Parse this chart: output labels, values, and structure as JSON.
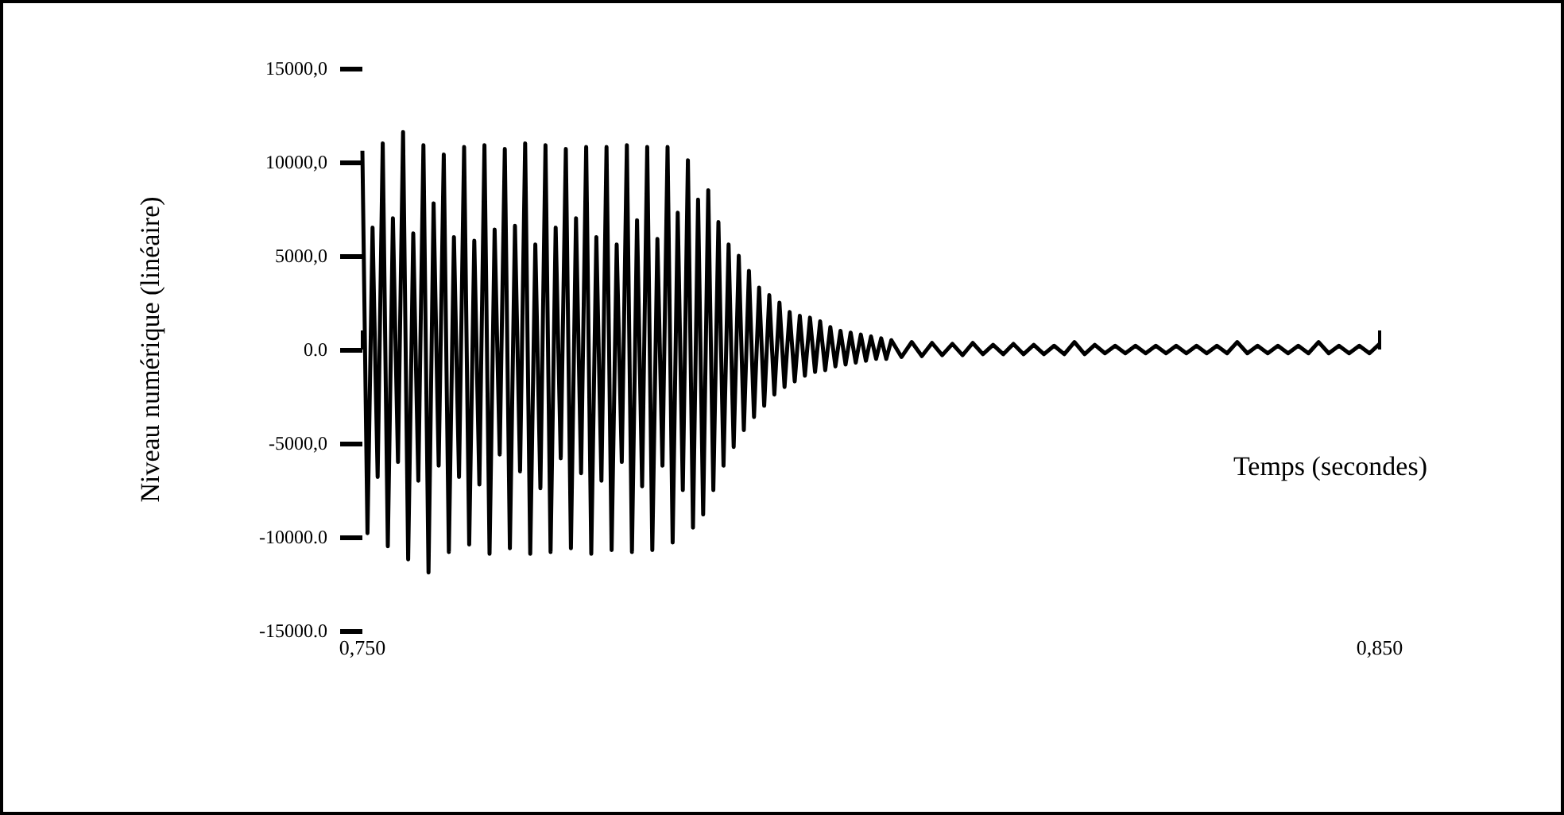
{
  "chart_data": {
    "type": "line",
    "xlabel": "Temps (secondes)",
    "ylabel": "Niveau numérique (linéaire)",
    "xlim": [
      0.75,
      0.85
    ],
    "xticks": [
      {
        "value": 0.75,
        "label": "0,750"
      },
      {
        "value": 0.85,
        "label": "0,850"
      }
    ],
    "ylim": [
      -15000,
      15000
    ],
    "yticks": [
      {
        "value": -15000,
        "label": "-15000.0"
      },
      {
        "value": -10000,
        "label": "-10000.0"
      },
      {
        "value": -5000,
        "label": "-5000,0"
      },
      {
        "value": 0,
        "label": "0.0"
      },
      {
        "value": 5000,
        "label": "5000,0"
      },
      {
        "value": 10000,
        "label": "10000,0"
      },
      {
        "value": 15000,
        "label": "15000,0"
      }
    ],
    "grid": false,
    "series": [
      {
        "color": "#000000",
        "x": [
          0.75,
          0.7505,
          0.751,
          0.7515,
          0.752,
          0.7525,
          0.753,
          0.7535,
          0.754,
          0.7545,
          0.755,
          0.7555,
          0.756,
          0.7565,
          0.757,
          0.7575,
          0.758,
          0.7585,
          0.759,
          0.7595,
          0.76,
          0.7605,
          0.761,
          0.7615,
          0.762,
          0.7625,
          0.763,
          0.7635,
          0.764,
          0.7645,
          0.765,
          0.7655,
          0.766,
          0.7665,
          0.767,
          0.7675,
          0.768,
          0.7685,
          0.769,
          0.7695,
          0.77,
          0.7705,
          0.771,
          0.7715,
          0.772,
          0.7725,
          0.773,
          0.7735,
          0.774,
          0.7745,
          0.775,
          0.7755,
          0.776,
          0.7765,
          0.777,
          0.7775,
          0.778,
          0.7785,
          0.779,
          0.7795,
          0.78,
          0.7805,
          0.781,
          0.7815,
          0.782,
          0.7825,
          0.783,
          0.7835,
          0.784,
          0.7845,
          0.785,
          0.7855,
          0.786,
          0.7865,
          0.787,
          0.7875,
          0.788,
          0.7885,
          0.789,
          0.7895,
          0.79,
          0.7905,
          0.791,
          0.7915,
          0.792,
          0.7925,
          0.793,
          0.7935,
          0.794,
          0.7945,
          0.795,
          0.7955,
          0.796,
          0.7965,
          0.797,
          0.7975,
          0.798,
          0.7985,
          0.799,
          0.7995,
          0.8,
          0.8005,
          0.801,
          0.8015,
          0.802,
          0.803,
          0.804,
          0.805,
          0.806,
          0.807,
          0.808,
          0.809,
          0.81,
          0.811,
          0.812,
          0.813,
          0.814,
          0.815,
          0.816,
          0.817,
          0.818,
          0.819,
          0.82,
          0.821,
          0.822,
          0.823,
          0.824,
          0.825,
          0.826,
          0.827,
          0.828,
          0.829,
          0.83,
          0.831,
          0.832,
          0.833,
          0.834,
          0.835,
          0.836,
          0.837,
          0.838,
          0.839,
          0.84,
          0.841,
          0.842,
          0.843,
          0.844,
          0.845,
          0.846,
          0.847,
          0.848,
          0.849,
          0.85
        ],
        "values": [
          10600,
          -9800,
          6500,
          -6800,
          11000,
          -10500,
          7000,
          -6000,
          11600,
          -11200,
          6200,
          -7000,
          10900,
          -11900,
          7800,
          -6200,
          10400,
          -10800,
          6000,
          -6800,
          10800,
          -10400,
          5800,
          -7200,
          10900,
          -10900,
          6400,
          -5600,
          10700,
          -10600,
          6600,
          -6500,
          11000,
          -10900,
          5600,
          -7400,
          10900,
          -10800,
          6500,
          -5800,
          10700,
          -10600,
          7000,
          -6600,
          10800,
          -10900,
          6000,
          -7000,
          10800,
          -10700,
          5600,
          -6000,
          10900,
          -10800,
          6900,
          -7300,
          10800,
          -10700,
          5900,
          -6200,
          10800,
          -10300,
          7300,
          -7500,
          10100,
          -9500,
          8000,
          -8800,
          8500,
          -7500,
          6800,
          -6200,
          5600,
          -5200,
          5000,
          -4300,
          4200,
          -3600,
          3300,
          -3000,
          2900,
          -2400,
          2500,
          -2000,
          2000,
          -1700,
          1800,
          -1400,
          1700,
          -1200,
          1500,
          -1100,
          1200,
          -900,
          1000,
          -800,
          900,
          -700,
          800,
          -600,
          700,
          -500,
          600,
          -500,
          500,
          -400,
          400,
          -350,
          350,
          -300,
          300,
          -300,
          350,
          -250,
          250,
          -250,
          300,
          -250,
          250,
          -250,
          200,
          -250,
          400,
          -250,
          250,
          -200,
          200,
          -200,
          200,
          -200,
          200,
          -200,
          200,
          -200,
          200,
          -200,
          200,
          -200,
          400,
          -200,
          200,
          -200,
          200,
          -200,
          200,
          -200,
          400,
          -200,
          200,
          -200,
          200,
          -200,
          300
        ]
      }
    ]
  }
}
